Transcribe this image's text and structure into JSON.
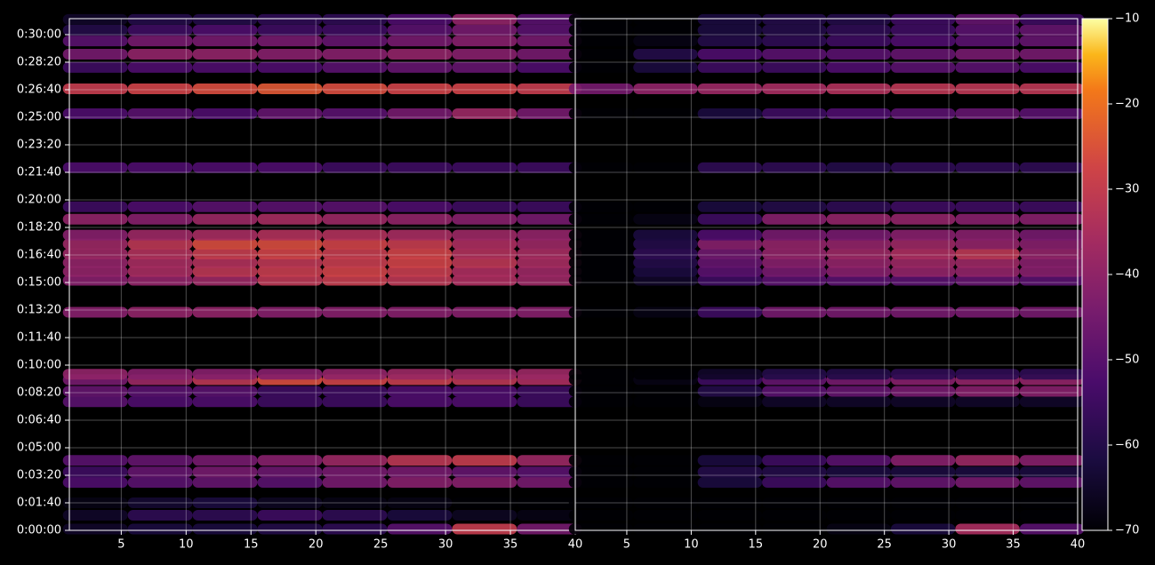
{
  "chart_data": {
    "type": "heatmap",
    "colormap": "inferno",
    "grid": true,
    "ylim": [
      0,
      1858
    ],
    "yticks": [
      {
        "value": 0,
        "label": "0:00:00"
      },
      {
        "value": 100,
        "label": "0:01:40"
      },
      {
        "value": 200,
        "label": "0:03:20"
      },
      {
        "value": 300,
        "label": "0:05:00"
      },
      {
        "value": 400,
        "label": "0:06:40"
      },
      {
        "value": 500,
        "label": "0:08:20"
      },
      {
        "value": 600,
        "label": "0:10:00"
      },
      {
        "value": 700,
        "label": "0:11:40"
      },
      {
        "value": 800,
        "label": "0:13:20"
      },
      {
        "value": 900,
        "label": "0:15:00"
      },
      {
        "value": 1000,
        "label": "0:16:40"
      },
      {
        "value": 1100,
        "label": "0:18:20"
      },
      {
        "value": 1200,
        "label": "0:20:00"
      },
      {
        "value": 1300,
        "label": "0:21:40"
      },
      {
        "value": 1400,
        "label": "0:23:20"
      },
      {
        "value": 1500,
        "label": "0:25:00"
      },
      {
        "value": 1600,
        "label": "0:26:40"
      },
      {
        "value": 1700,
        "label": "0:28:20"
      },
      {
        "value": 1800,
        "label": "0:30:00"
      }
    ],
    "y": [
      5,
      55,
      100,
      174,
      212,
      254,
      467,
      505,
      547,
      567,
      792,
      908,
      940,
      972,
      1004,
      1040,
      1072,
      1130,
      1175,
      1317,
      1513,
      1603,
      1681,
      1729,
      1777,
      1816,
      1855
    ],
    "zlim": [
      -70,
      -10
    ],
    "zticks": [
      {
        "value": -70,
        "label": "−70"
      },
      {
        "value": -60,
        "label": "−60"
      },
      {
        "value": -50,
        "label": "−50"
      },
      {
        "value": -40,
        "label": "−40"
      },
      {
        "value": -30,
        "label": "−30"
      },
      {
        "value": -20,
        "label": "−20"
      },
      {
        "value": -10,
        "label": "−10"
      }
    ],
    "panels": [
      {
        "xlim": [
          1,
          40
        ],
        "xticks": [
          5,
          10,
          15,
          20,
          25,
          30,
          35,
          40
        ],
        "x": [
          3,
          8,
          13,
          18,
          23,
          28,
          33,
          38
        ],
        "z": [
          [
            -65,
            -62,
            -62,
            -60,
            -58,
            -50,
            -30,
            -45
          ],
          [
            -65,
            -58,
            -58,
            -55,
            -58,
            -62,
            -66,
            -68
          ],
          [
            -68,
            -64,
            -62,
            -66,
            -68,
            -68,
            -70,
            -70
          ],
          [
            -52,
            -50,
            -48,
            -50,
            -45,
            -42,
            -42,
            -45
          ],
          [
            -55,
            -48,
            -45,
            -47,
            -45,
            -45,
            -48,
            -50
          ],
          [
            -50,
            -48,
            -45,
            -42,
            -38,
            -32,
            -30,
            -38
          ],
          [
            -50,
            -52,
            -52,
            -55,
            -55,
            -52,
            -52,
            -55
          ],
          [
            -48,
            -50,
            -50,
            -55,
            -55,
            -52,
            -52,
            -55
          ],
          [
            -45,
            -38,
            -32,
            -26,
            -28,
            -30,
            -32,
            -35
          ],
          [
            -40,
            -42,
            -42,
            -42,
            -40,
            -38,
            -38,
            -38
          ],
          [
            -42,
            -40,
            -40,
            -42,
            -42,
            -42,
            -42,
            -42
          ],
          [
            -42,
            -40,
            -38,
            -32,
            -30,
            -32,
            -35,
            -38
          ],
          [
            -40,
            -36,
            -32,
            -30,
            -28,
            -30,
            -35,
            -38
          ],
          [
            -40,
            -36,
            -34,
            -32,
            -30,
            -28,
            -32,
            -36
          ],
          [
            -38,
            -34,
            -30,
            -28,
            -30,
            -28,
            -34,
            -36
          ],
          [
            -38,
            -32,
            -26,
            -26,
            -28,
            -30,
            -35,
            -38
          ],
          [
            -42,
            -38,
            -36,
            -34,
            -34,
            -36,
            -38,
            -40
          ],
          [
            -40,
            -42,
            -38,
            -36,
            -38,
            -40,
            -42,
            -45
          ],
          [
            -55,
            -52,
            -50,
            -50,
            -50,
            -52,
            -55,
            -55
          ],
          [
            -52,
            -52,
            -52,
            -52,
            -55,
            -55,
            -55,
            -55
          ],
          [
            -52,
            -50,
            -52,
            -48,
            -50,
            -45,
            -38,
            -45
          ],
          [
            -30,
            -28,
            -26,
            -24,
            -26,
            -28,
            -28,
            -30
          ],
          [
            -55,
            -52,
            -52,
            -52,
            -50,
            -48,
            -48,
            -52
          ],
          [
            -45,
            -40,
            -40,
            -42,
            -42,
            -40,
            -42,
            -45
          ],
          [
            -50,
            -45,
            -45,
            -45,
            -48,
            -45,
            -42,
            -45
          ],
          [
            -60,
            -55,
            -52,
            -55,
            -55,
            -50,
            -45,
            -50
          ],
          [
            -65,
            -60,
            -60,
            -58,
            -58,
            -52,
            -40,
            -50
          ]
        ]
      },
      {
        "xlim": [
          1,
          40
        ],
        "xticks": [
          5,
          10,
          15,
          20,
          25,
          30,
          35,
          40
        ],
        "x": [
          3,
          8,
          13,
          18,
          23,
          28,
          33,
          38
        ],
        "z": [
          [
            -70,
            -70,
            -70,
            -70,
            -68,
            -62,
            -35,
            -50
          ],
          [
            -70,
            -70,
            -70,
            -70,
            -70,
            -70,
            -70,
            -70
          ],
          [
            -70,
            -70,
            -70,
            -70,
            -70,
            -70,
            -70,
            -70
          ],
          [
            -70,
            -70,
            -62,
            -55,
            -50,
            -48,
            -45,
            -48
          ],
          [
            -70,
            -70,
            -60,
            -60,
            -62,
            -62,
            -62,
            -62
          ],
          [
            -70,
            -70,
            -62,
            -55,
            -50,
            -42,
            -38,
            -42
          ],
          [
            -70,
            -70,
            -68,
            -65,
            -65,
            -65,
            -65,
            -65
          ],
          [
            -70,
            -70,
            -60,
            -50,
            -48,
            -45,
            -42,
            -42
          ],
          [
            -70,
            -68,
            -55,
            -48,
            -45,
            -42,
            -40,
            -40
          ],
          [
            -70,
            -70,
            -65,
            -60,
            -60,
            -58,
            -58,
            -58
          ],
          [
            -70,
            -68,
            -55,
            -45,
            -45,
            -45,
            -45,
            -45
          ],
          [
            -70,
            -65,
            -55,
            -50,
            -50,
            -50,
            -48,
            -50
          ],
          [
            -70,
            -62,
            -50,
            -45,
            -42,
            -40,
            -40,
            -42
          ],
          [
            -70,
            -60,
            -48,
            -42,
            -40,
            -38,
            -38,
            -42
          ],
          [
            -70,
            -58,
            -46,
            -40,
            -38,
            -35,
            -32,
            -40
          ],
          [
            -70,
            -60,
            -42,
            -40,
            -40,
            -38,
            -40,
            -42
          ],
          [
            -70,
            -62,
            -52,
            -45,
            -45,
            -42,
            -42,
            -45
          ],
          [
            -70,
            -68,
            -55,
            -42,
            -40,
            -40,
            -42,
            -42
          ],
          [
            -70,
            -70,
            -62,
            -60,
            -58,
            -55,
            -55,
            -55
          ],
          [
            -70,
            -70,
            -58,
            -58,
            -60,
            -58,
            -58,
            -58
          ],
          [
            -70,
            -70,
            -62,
            -55,
            -52,
            -50,
            -48,
            -50
          ],
          [
            -45,
            -40,
            -38,
            -36,
            -34,
            -32,
            -32,
            -32
          ],
          [
            -70,
            -62,
            -55,
            -55,
            -52,
            -50,
            -50,
            -52
          ],
          [
            -70,
            -60,
            -52,
            -50,
            -50,
            -48,
            -45,
            -45
          ],
          [
            -70,
            -68,
            -60,
            -58,
            -55,
            -52,
            -50,
            -48
          ],
          [
            -70,
            -70,
            -62,
            -60,
            -58,
            -55,
            -50,
            -48
          ],
          [
            -70,
            -70,
            -62,
            -60,
            -60,
            -55,
            -48,
            -55
          ]
        ]
      }
    ]
  }
}
